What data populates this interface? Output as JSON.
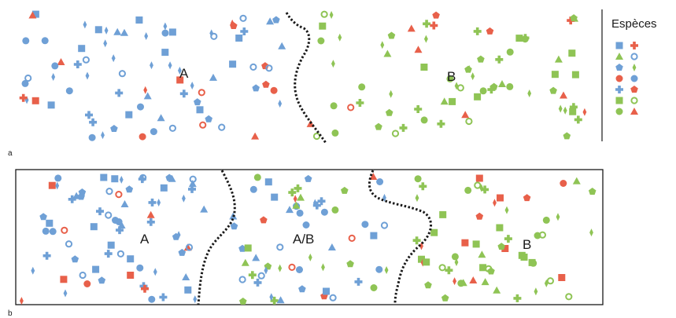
{
  "legend": {
    "title": "Espèces",
    "species_colors": {
      "blue": "#6fa0d6",
      "red": "#e8604a",
      "green": "#8fc455"
    }
  },
  "panels": [
    {
      "tag": "a",
      "regions": [
        "A",
        "B"
      ]
    },
    {
      "tag": "b",
      "regions": [
        "A",
        "A/B",
        "B"
      ]
    }
  ]
}
